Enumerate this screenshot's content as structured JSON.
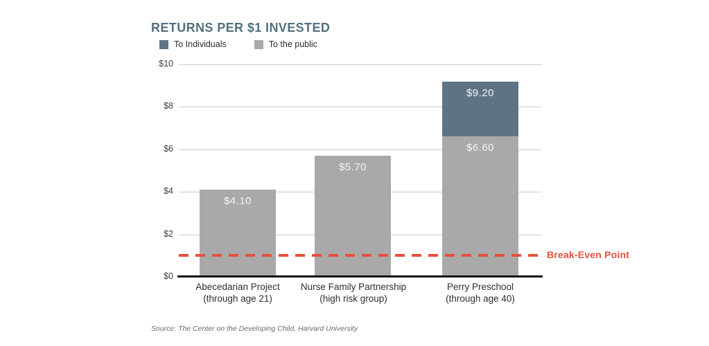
{
  "header": {
    "title": "RETURNS PER $1 INVESTED"
  },
  "legend": {
    "items": [
      {
        "label": "To Individuals",
        "color": "#5d7486",
        "series": "to_individuals"
      },
      {
        "label": "To the public",
        "color": "#a9a9aa",
        "series": "to_public"
      }
    ]
  },
  "chart_data": {
    "type": "bar",
    "stacked": true,
    "title": "RETURNS PER $1 INVESTED",
    "legend_position": "top-left",
    "grid": true,
    "ylim": [
      0,
      10
    ],
    "yticks": [
      {
        "value": 0,
        "label": "$0"
      },
      {
        "value": 2,
        "label": "$2"
      },
      {
        "value": 4,
        "label": "$4"
      },
      {
        "value": 6,
        "label": "$6"
      },
      {
        "value": 8,
        "label": "$8"
      },
      {
        "value": 10,
        "label": "$10"
      }
    ],
    "series_colors": {
      "to_public": "#a9a9aa",
      "to_individuals": "#5d7486"
    },
    "bars": [
      {
        "name": "Abecedarian Project",
        "subtitle": "(through age 21)",
        "to_public": 4.1,
        "to_public_label": "$4.10",
        "total": 4.1
      },
      {
        "name": "Nurse Family Partnership",
        "subtitle": "(high risk group)",
        "to_public": 5.7,
        "to_public_label": "$5.70",
        "total": 5.7
      },
      {
        "name": "Perry Preschool",
        "subtitle": "(through age 40)",
        "to_public": 6.6,
        "to_public_label": "$6.60",
        "to_individuals_top": 9.2,
        "to_individuals_label": "$9.20",
        "total": 9.2
      }
    ],
    "annotations": [
      {
        "type": "dashed_line",
        "value": 1.0,
        "label": "Break-Even Point",
        "color": "#e8503c"
      }
    ],
    "source": "Source: The Center on the Developing Child, Harvard University"
  }
}
